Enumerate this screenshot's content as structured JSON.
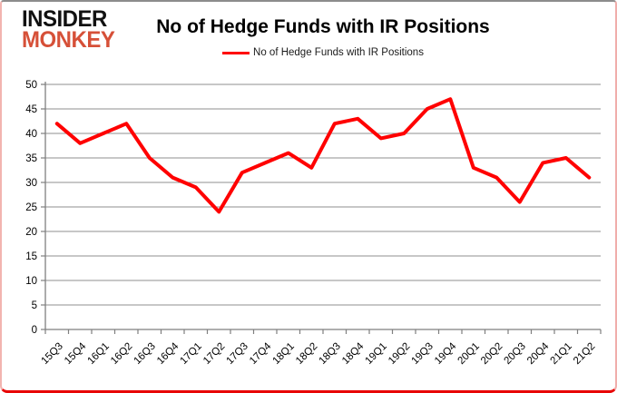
{
  "logo": {
    "line1": "INSIDER",
    "line2": "MONKEY"
  },
  "header": {
    "title": "No of Hedge Funds with IR Positions"
  },
  "legend": {
    "label": "No of Hedge Funds with IR Positions"
  },
  "chart_data": {
    "type": "line",
    "title": "No of Hedge Funds with IR Positions",
    "categories": [
      "15Q3",
      "15Q4",
      "16Q1",
      "16Q2",
      "16Q3",
      "16Q4",
      "17Q1",
      "17Q2",
      "17Q3",
      "17Q4",
      "18Q1",
      "18Q2",
      "18Q3",
      "18Q4",
      "19Q1",
      "19Q2",
      "19Q3",
      "19Q4",
      "20Q1",
      "20Q2",
      "20Q3",
      "20Q4",
      "21Q1",
      "21Q2"
    ],
    "series": [
      {
        "name": "No of Hedge Funds with IR Positions",
        "color": "#ff0000",
        "values": [
          42,
          38,
          40,
          42,
          35,
          31,
          29,
          24,
          32,
          34,
          36,
          33,
          42,
          43,
          39,
          40,
          45,
          47,
          33,
          31,
          26,
          34,
          35,
          31
        ]
      }
    ],
    "xlabel": "",
    "ylabel": "",
    "ylim": [
      0,
      50
    ],
    "ytick_step": 5,
    "grid": true,
    "legend_position": "top"
  },
  "colors": {
    "line": "#ff0000",
    "grid": "#8f8f8f",
    "axis": "#7f7f7f",
    "tick_label": "#000000",
    "logo_black": "#111111",
    "logo_red": "#d65038",
    "frame_bottom": "#e80505"
  }
}
